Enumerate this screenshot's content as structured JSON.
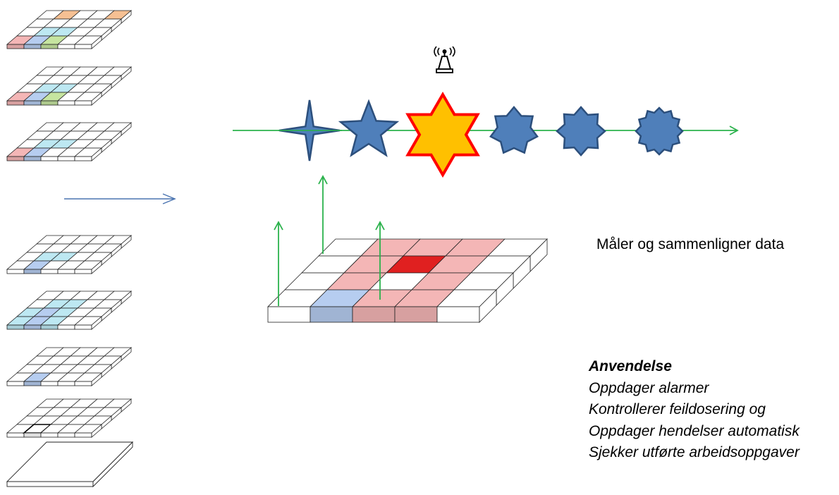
{
  "measure_text": "Måler og sammenligner data",
  "usage": {
    "heading": "Anvendelse",
    "items": [
      "Oppdager alarmer",
      "Kontrollerer feildosering og",
      "Oppdager hendelser automatisk",
      "Sjekker utførte arbeidsoppgaver"
    ]
  },
  "colors": {
    "timeline": "#2bb24c",
    "star_blue": "#4f7fba",
    "star_outline": "#2c4f7c",
    "alert_fill": "#ffc000",
    "alert_outline": "#ff0000",
    "blue_arrow": "#4a74b0",
    "cell_red": "#f4b6b6",
    "cell_red_dark": "#e02020",
    "cell_blue": "#b6cdf0",
    "cell_cyan": "#bde8f2",
    "cell_green": "#c6e5a0",
    "cell_orange": "#f6c093"
  },
  "icons": {
    "alert_device": "antenna-tower-icon"
  },
  "stack_layers": [
    {
      "cells": [
        [
          0,
          0,
          "red"
        ],
        [
          0,
          1,
          "blue"
        ],
        [
          0,
          2,
          "green"
        ],
        [
          1,
          1,
          "cyan"
        ],
        [
          1,
          2,
          "cyan"
        ],
        [
          3,
          1,
          "orange"
        ],
        [
          3,
          4,
          "orange"
        ]
      ]
    },
    {
      "cells": [
        [
          0,
          0,
          "red"
        ],
        [
          0,
          1,
          "blue"
        ],
        [
          0,
          2,
          "green"
        ],
        [
          1,
          1,
          "cyan"
        ],
        [
          1,
          2,
          "cyan"
        ]
      ]
    },
    {
      "cells": [
        [
          0,
          0,
          "red"
        ],
        [
          0,
          1,
          "blue"
        ],
        [
          1,
          1,
          "cyan"
        ],
        [
          1,
          2,
          "cyan"
        ]
      ]
    },
    {
      "cells": [
        [
          0,
          1,
          "blue"
        ],
        [
          1,
          1,
          "cyan"
        ],
        [
          1,
          2,
          "cyan"
        ]
      ]
    },
    {
      "cells": [
        [
          0,
          0,
          "cyan"
        ],
        [
          0,
          1,
          "blue"
        ],
        [
          0,
          2,
          "cyan"
        ],
        [
          1,
          0,
          "cyan"
        ],
        [
          1,
          1,
          "blue"
        ],
        [
          1,
          2,
          "cyan"
        ],
        [
          2,
          1,
          "cyan"
        ],
        [
          2,
          2,
          "cyan"
        ]
      ]
    },
    {
      "cells": [
        [
          0,
          1,
          "blue"
        ]
      ]
    },
    {
      "cells": [
        [
          0,
          1,
          "outline"
        ]
      ]
    },
    {
      "cells": [],
      "flat": true
    }
  ],
  "big_grid": {
    "cells": [
      [
        0,
        1,
        "blue"
      ],
      [
        0,
        2,
        "red"
      ],
      [
        0,
        3,
        "red"
      ],
      [
        1,
        1,
        "red"
      ],
      [
        1,
        2,
        "white"
      ],
      [
        1,
        3,
        "red"
      ],
      [
        2,
        1,
        "red"
      ],
      [
        2,
        2,
        "red_dark"
      ],
      [
        2,
        3,
        "red"
      ],
      [
        3,
        1,
        "red"
      ],
      [
        3,
        2,
        "red"
      ],
      [
        3,
        3,
        "red"
      ]
    ]
  },
  "shapes": [
    "star4",
    "star5",
    "star6",
    "star7",
    "star8",
    "star12"
  ]
}
